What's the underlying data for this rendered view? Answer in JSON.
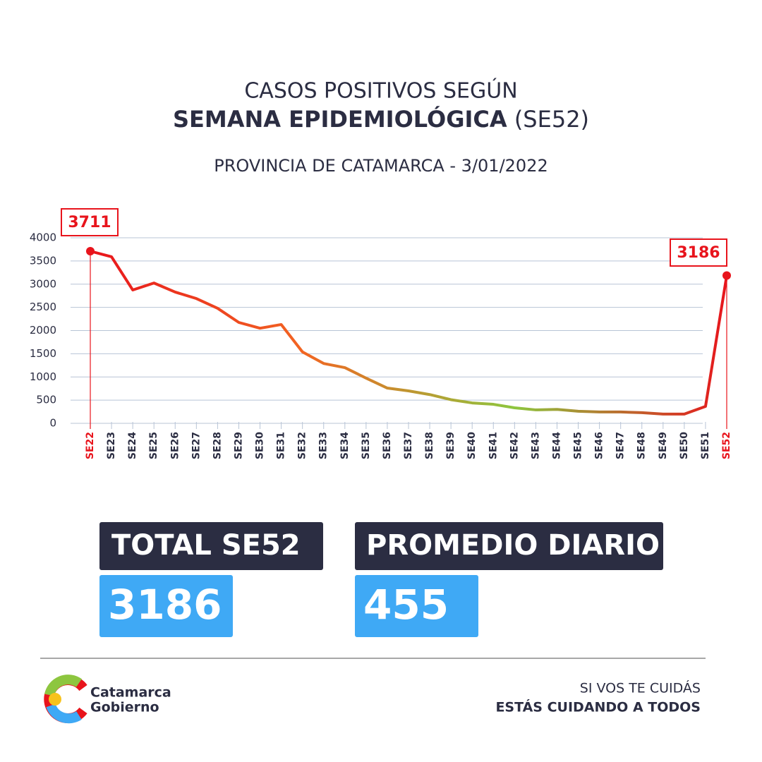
{
  "chart_data": {
    "type": "line",
    "title": "CASOS POSITIVOS SEGÚN",
    "title_bold": "SEMANA EPIDEMIOLÓGICA",
    "title_suffix": "(SE52)",
    "subtitle": "PROVINCIA DE CATAMARCA - 3/01/2022",
    "categories": [
      "SE22",
      "SE23",
      "SE24",
      "SE25",
      "SE26",
      "SE27",
      "SE28",
      "SE29",
      "SE30",
      "SE31",
      "SE32",
      "SE33",
      "SE34",
      "SE35",
      "SE36",
      "SE37",
      "SE38",
      "SE39",
      "SE40",
      "SE41",
      "SE42",
      "SE43",
      "SE44",
      "SE45",
      "SE46",
      "SE47",
      "SE48",
      "SE49",
      "SE50",
      "SE51",
      "SE52"
    ],
    "values": [
      3711,
      3590,
      2875,
      3025,
      2830,
      2690,
      2480,
      2175,
      2050,
      2130,
      1540,
      1290,
      1200,
      975,
      760,
      700,
      620,
      510,
      440,
      410,
      335,
      290,
      300,
      260,
      245,
      245,
      230,
      200,
      200,
      365,
      3186
    ],
    "colors": [
      "#e8141c",
      "#f26522",
      "#8dc63f",
      "#e8141c"
    ],
    "highlight_color": "#e8141c",
    "ylim": [
      0,
      4000
    ],
    "yticks": [
      0,
      500,
      1000,
      1500,
      2000,
      2500,
      3000,
      3500,
      4000
    ],
    "grid": true
  },
  "stats": [
    {
      "label": "TOTAL SE52",
      "value": "3186"
    },
    {
      "label": "PROMEDIO DIARIO",
      "value": "455"
    }
  ],
  "footer": {
    "logo": [
      "Catamarca",
      "Gobierno"
    ],
    "slogan": [
      "SI VOS TE CUIDÁS",
      "ESTÁS CUIDANDO A TODOS"
    ]
  }
}
